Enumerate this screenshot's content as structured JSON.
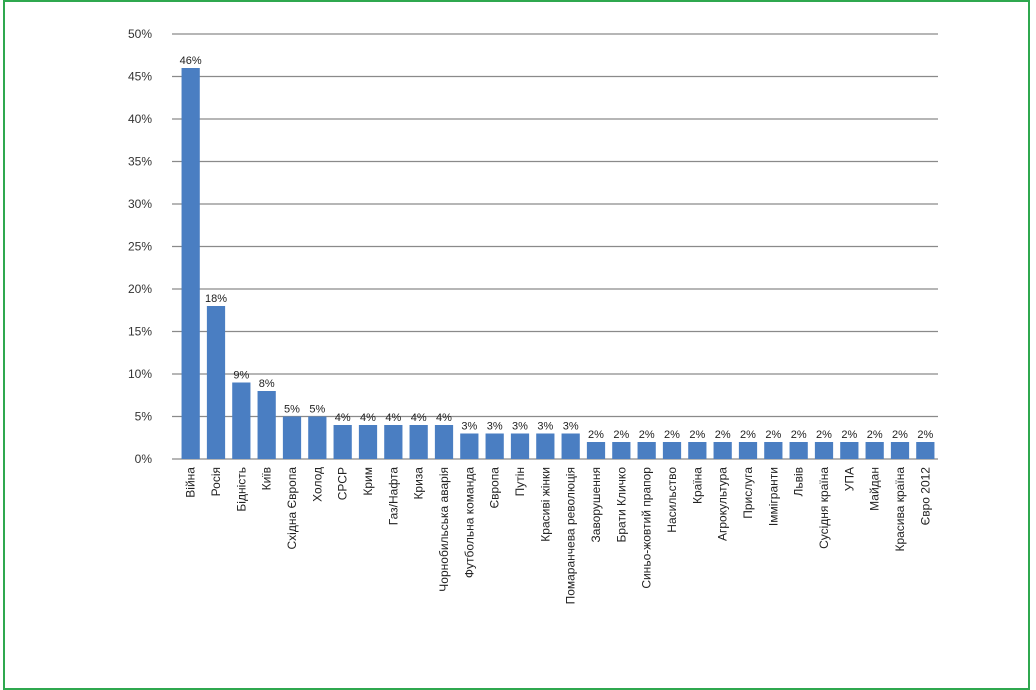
{
  "chart_data": {
    "type": "bar",
    "title": "",
    "xlabel": "",
    "ylabel": "",
    "ylim": [
      0,
      50
    ],
    "ytick_step": 5,
    "y_unit": "%",
    "grid": true,
    "bar_color": "#4a7ec2",
    "categories": [
      "Війна",
      "Росія",
      "Бідність",
      "Київ",
      "Східна Європа",
      "Холод",
      "СРСР",
      "Крим",
      "Газ/Нафта",
      "Криза",
      "Чорнобильська аварія",
      "Футбольна команда",
      "Європа",
      "Путін",
      "Красиві жінки",
      "Помаранчева революція",
      "Заворушення",
      "Брати Кличко",
      "Синьо-жовтий прапор",
      "Насильство",
      "Країна",
      "Агрокультура",
      "Прислуга",
      "Іммігранти",
      "Львів",
      "Сусідня країна",
      "УПА",
      "Майдан",
      "Красива країна",
      "Євро 2012"
    ],
    "values": [
      46,
      18,
      9,
      8,
      5,
      5,
      4,
      4,
      4,
      4,
      4,
      3,
      3,
      3,
      3,
      3,
      2,
      2,
      2,
      2,
      2,
      2,
      2,
      2,
      2,
      2,
      2,
      2,
      2,
      2
    ],
    "data_labels": [
      "46%",
      "18%",
      "9%",
      "8%",
      "5%",
      "5%",
      "4%",
      "4%",
      "4%",
      "4%",
      "4%",
      "3%",
      "3%",
      "3%",
      "3%",
      "3%",
      "2%",
      "2%",
      "2%",
      "2%",
      "2%",
      "2%",
      "2%",
      "2%",
      "2%",
      "2%",
      "2%",
      "2%",
      "2%",
      "2%"
    ],
    "y_tick_labels": [
      "0%",
      "5%",
      "10%",
      "15%",
      "20%",
      "25%",
      "30%",
      "35%",
      "40%",
      "45%",
      "50%"
    ]
  }
}
